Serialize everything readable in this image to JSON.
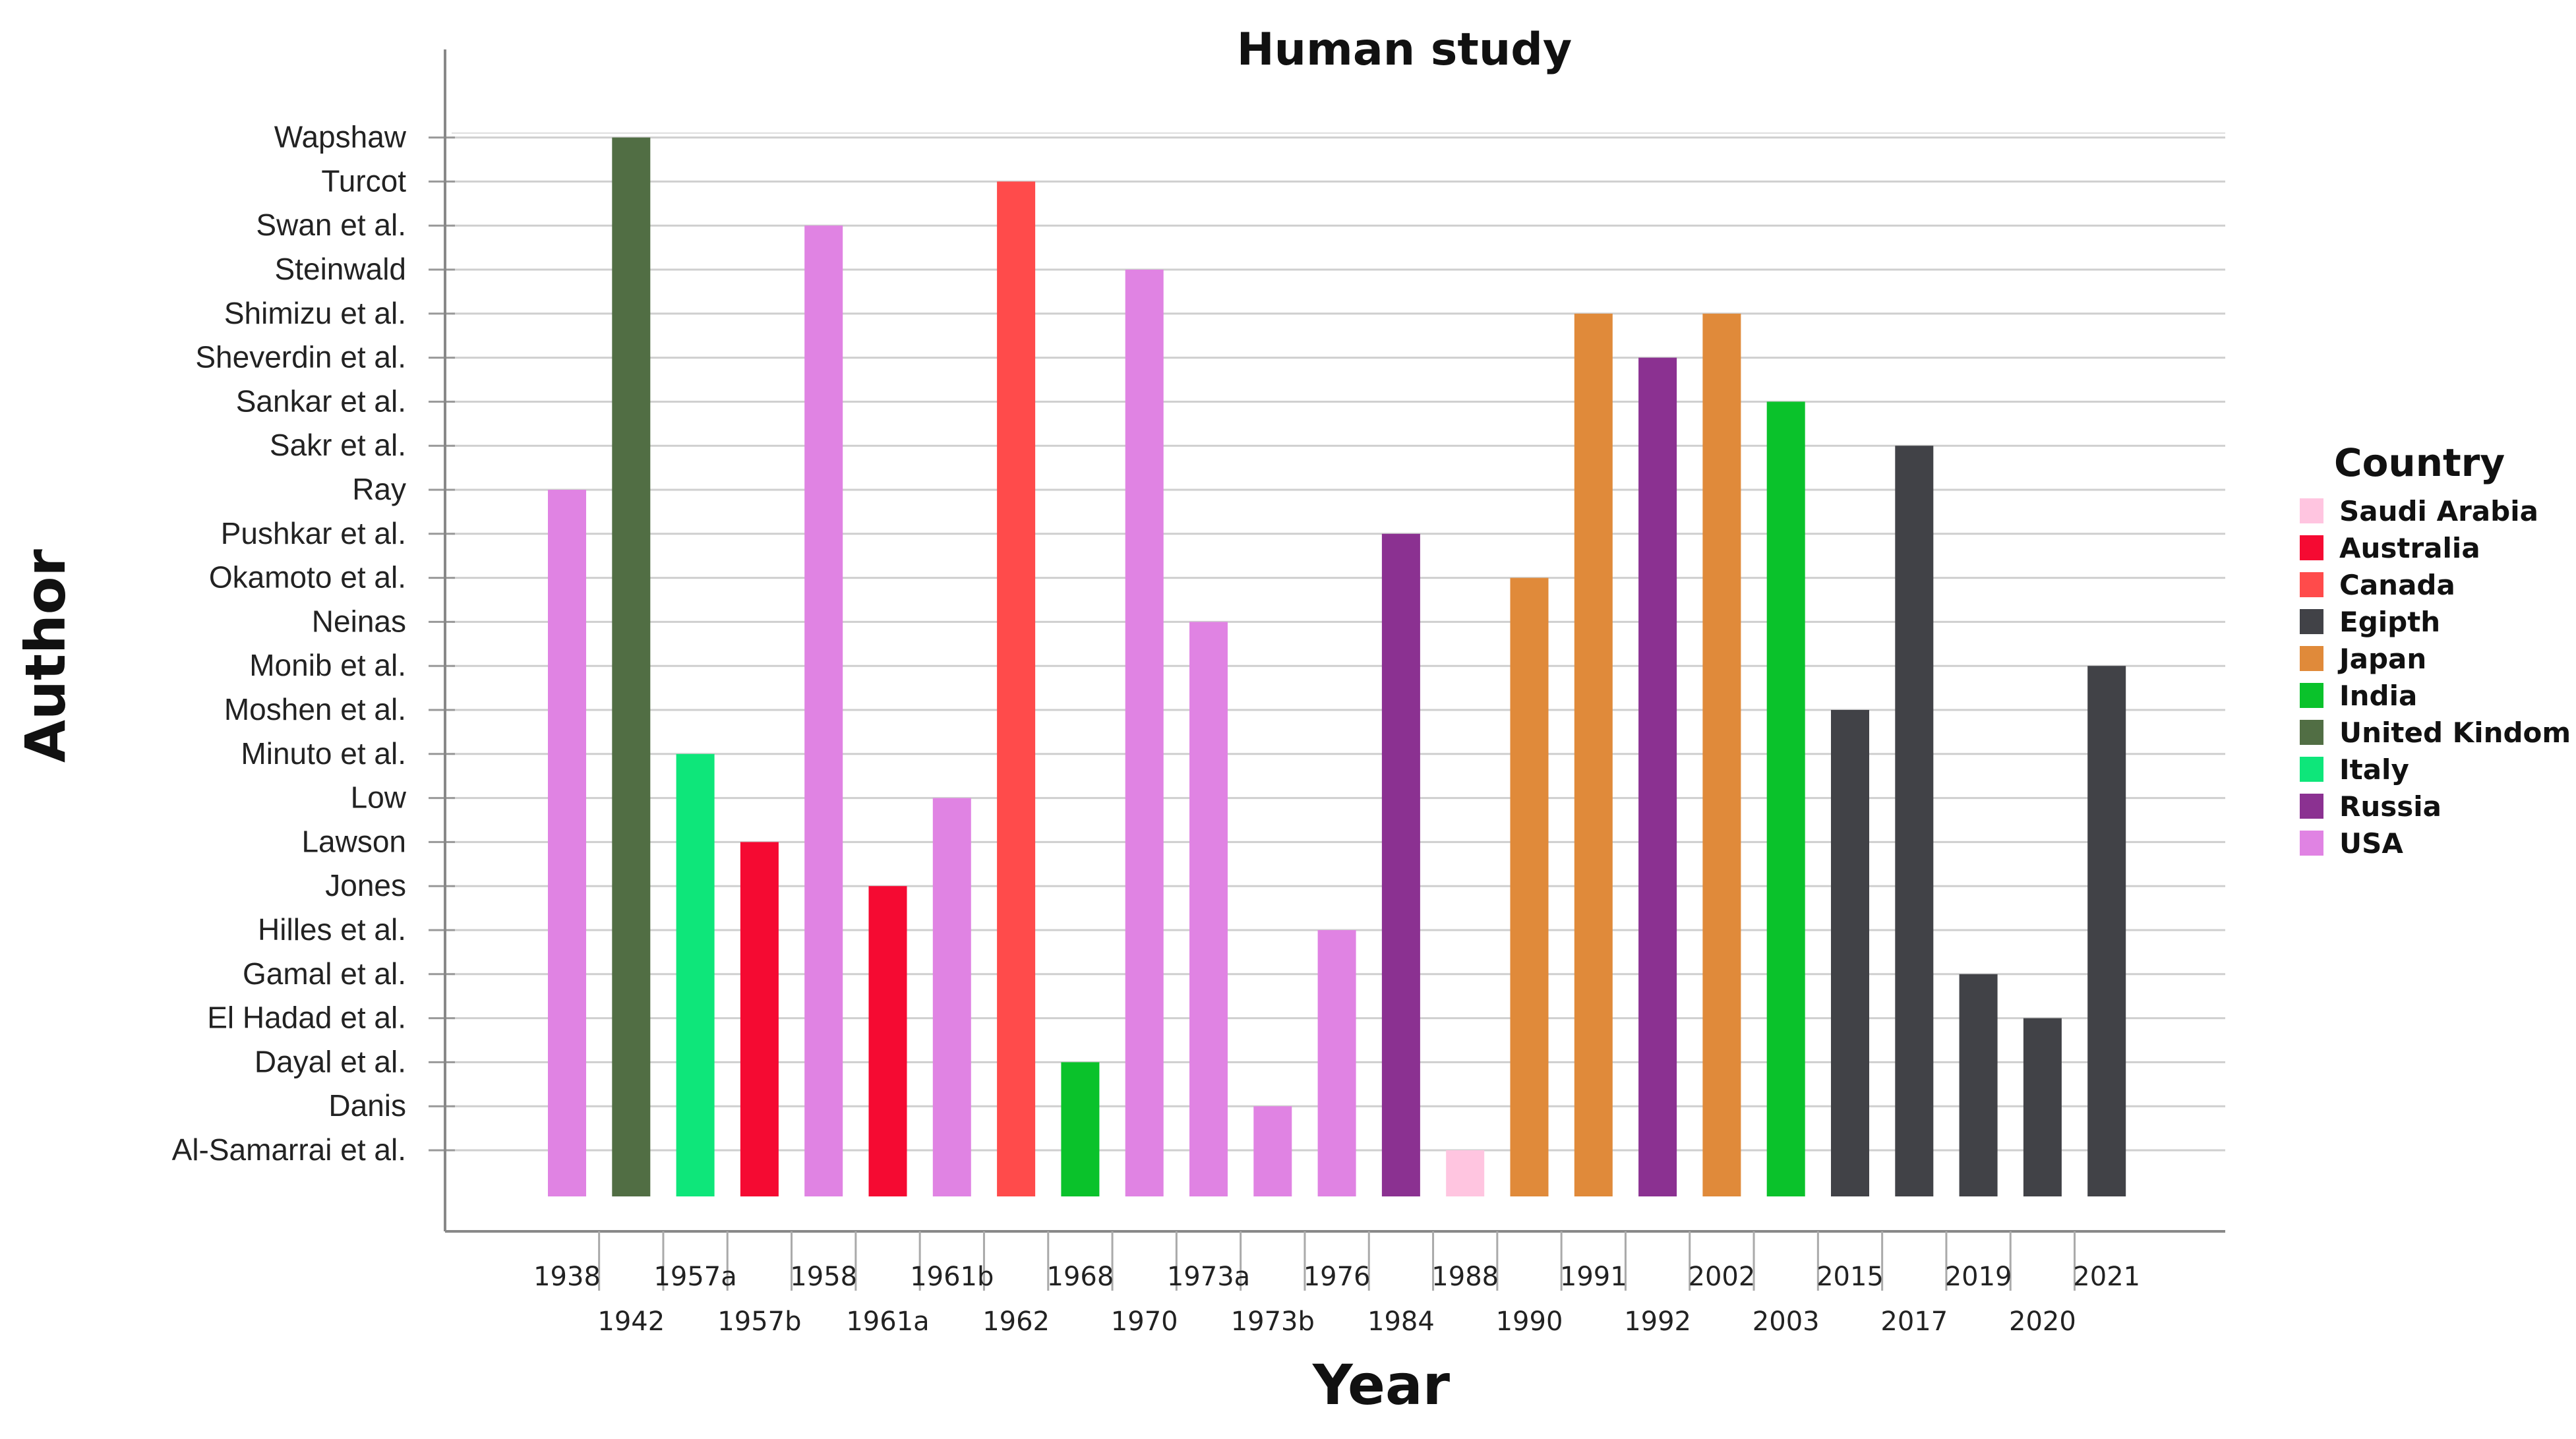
{
  "chart_data": {
    "type": "bar",
    "title": "Human study",
    "xlabel": "Year",
    "ylabel": "Author",
    "legend_title": "Country",
    "legend_position": "right",
    "y_categories": [
      "Al-Samarrai et al.",
      "Danis",
      "Dayal et al.",
      "El Hadad et al.",
      "Gamal et al.",
      "Hilles et al.",
      "Jones",
      "Lawson",
      "Low",
      "Minuto et al.",
      "Moshen et al.",
      "Monib et al.",
      "Neinas",
      "Okamoto et al.",
      "Pushkar et al.",
      "Ray",
      "Sakr et al.",
      "Sankar et al.",
      "Sheverdin et al.",
      "Shimizu et al.",
      "Steinwald",
      "Swan et al.",
      "Turcot",
      "Wapshaw"
    ],
    "legend": [
      {
        "country": "Saudi Arabia",
        "color": "#FFC5E0"
      },
      {
        "country": "Australia",
        "color": "#F50A32"
      },
      {
        "country": "Canada",
        "color": "#FF4B4B"
      },
      {
        "country": "Egipth",
        "color": "#414247"
      },
      {
        "country": "Japan",
        "color": "#E08A3A"
      },
      {
        "country": "India",
        "color": "#0AC22B"
      },
      {
        "country": "United Kindom",
        "color": "#516E44"
      },
      {
        "country": "Italy",
        "color": "#0EE67A"
      },
      {
        "country": "Russia",
        "color": "#8B3191"
      },
      {
        "country": "USA",
        "color": "#E083E3"
      }
    ],
    "bars": [
      {
        "year": "1938",
        "author": "Ray",
        "country": "USA"
      },
      {
        "year": "1942",
        "author": "Wapshaw",
        "country": "United Kindom"
      },
      {
        "year": "1957a",
        "author": "Minuto et al.",
        "country": "Italy"
      },
      {
        "year": "1957b",
        "author": "Lawson",
        "country": "Australia"
      },
      {
        "year": "1958",
        "author": "Swan et al.",
        "country": "USA"
      },
      {
        "year": "1961a",
        "author": "Jones",
        "country": "Australia"
      },
      {
        "year": "1961b",
        "author": "Low",
        "country": "USA"
      },
      {
        "year": "1962",
        "author": "Turcot",
        "country": "Canada"
      },
      {
        "year": "1968",
        "author": "Dayal et al.",
        "country": "India"
      },
      {
        "year": "1970",
        "author": "Steinwald",
        "country": "USA"
      },
      {
        "year": "1973a",
        "author": "Neinas",
        "country": "USA"
      },
      {
        "year": "1973b",
        "author": "Danis",
        "country": "USA"
      },
      {
        "year": "1976",
        "author": "Hilles et al.",
        "country": "USA"
      },
      {
        "year": "1984",
        "author": "Pushkar et al.",
        "country": "Russia"
      },
      {
        "year": "1988",
        "author": "Al-Samarrai et al.",
        "country": "Saudi Arabia"
      },
      {
        "year": "1990",
        "author": "Okamoto et al.",
        "country": "Japan"
      },
      {
        "year": "1991",
        "author": "Shimizu et al.",
        "country": "Japan"
      },
      {
        "year": "1992",
        "author": "Sheverdin et al.",
        "country": "Russia"
      },
      {
        "year": "2002",
        "author": "Shimizu et al.",
        "country": "Japan"
      },
      {
        "year": "2003",
        "author": "Sankar et al.",
        "country": "India"
      },
      {
        "year": "2015",
        "author": "Moshen et al.",
        "country": "Egipth"
      },
      {
        "year": "2017",
        "author": "Sakr et al.",
        "country": "Egipth"
      },
      {
        "year": "2019",
        "author": "Gamal et al.",
        "country": "Egipth"
      },
      {
        "year": "2020",
        "author": "El Hadad et al.",
        "country": "Egipth"
      },
      {
        "year": "2021",
        "author": "Monib et al.",
        "country": "Egipth"
      }
    ]
  }
}
